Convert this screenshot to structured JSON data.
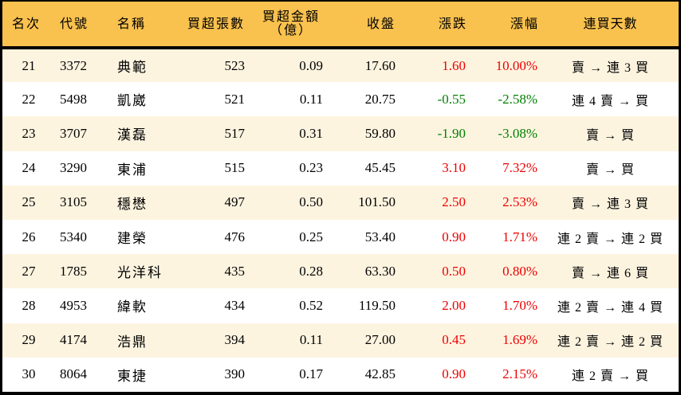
{
  "colors": {
    "header_bg": "#f9c14e",
    "row_odd_bg": "#fdf4e0",
    "row_even_bg": "#ffffff",
    "up": "#ee0000",
    "down": "#008000"
  },
  "headers": {
    "rank": "名次",
    "code": "代號",
    "name": "名稱",
    "net_buy_lots": "買超張數",
    "net_buy_amount_line1": "買超金額",
    "net_buy_amount_line2": "（億）",
    "close": "收盤",
    "change": "漲跌",
    "change_pct": "漲幅",
    "streak": "連買天數"
  },
  "rows": [
    {
      "rank": "21",
      "code": "3372",
      "name": "典範",
      "lots": "523",
      "amount": "0.09",
      "close": "17.60",
      "change": "1.60",
      "pct": "10.00%",
      "dir": "up",
      "streak": "賣 → 連 3 買"
    },
    {
      "rank": "22",
      "code": "5498",
      "name": "凱崴",
      "lots": "521",
      "amount": "0.11",
      "close": "20.75",
      "change": "-0.55",
      "pct": "-2.58%",
      "dir": "down",
      "streak": "連 4 賣 → 買"
    },
    {
      "rank": "23",
      "code": "3707",
      "name": "漢磊",
      "lots": "517",
      "amount": "0.31",
      "close": "59.80",
      "change": "-1.90",
      "pct": "-3.08%",
      "dir": "down",
      "streak": "賣 → 買"
    },
    {
      "rank": "24",
      "code": "3290",
      "name": "東浦",
      "lots": "515",
      "amount": "0.23",
      "close": "45.45",
      "change": "3.10",
      "pct": "7.32%",
      "dir": "up",
      "streak": "賣 → 買"
    },
    {
      "rank": "25",
      "code": "3105",
      "name": "穩懋",
      "lots": "497",
      "amount": "0.50",
      "close": "101.50",
      "change": "2.50",
      "pct": "2.53%",
      "dir": "up",
      "streak": "賣 → 連 3 買"
    },
    {
      "rank": "26",
      "code": "5340",
      "name": "建榮",
      "lots": "476",
      "amount": "0.25",
      "close": "53.40",
      "change": "0.90",
      "pct": "1.71%",
      "dir": "up",
      "streak": "連 2 賣 → 連 2 買"
    },
    {
      "rank": "27",
      "code": "1785",
      "name": "光洋科",
      "lots": "435",
      "amount": "0.28",
      "close": "63.30",
      "change": "0.50",
      "pct": "0.80%",
      "dir": "up",
      "streak": "賣 → 連 6 買"
    },
    {
      "rank": "28",
      "code": "4953",
      "name": "緯軟",
      "lots": "434",
      "amount": "0.52",
      "close": "119.50",
      "change": "2.00",
      "pct": "1.70%",
      "dir": "up",
      "streak": "連 2 賣 → 連 4 買"
    },
    {
      "rank": "29",
      "code": "4174",
      "name": "浩鼎",
      "lots": "394",
      "amount": "0.11",
      "close": "27.00",
      "change": "0.45",
      "pct": "1.69%",
      "dir": "up",
      "streak": "連 2 賣 → 連 2 買"
    },
    {
      "rank": "30",
      "code": "8064",
      "name": "東捷",
      "lots": "390",
      "amount": "0.17",
      "close": "42.85",
      "change": "0.90",
      "pct": "2.15%",
      "dir": "up",
      "streak": "連 2 賣 → 買"
    }
  ]
}
